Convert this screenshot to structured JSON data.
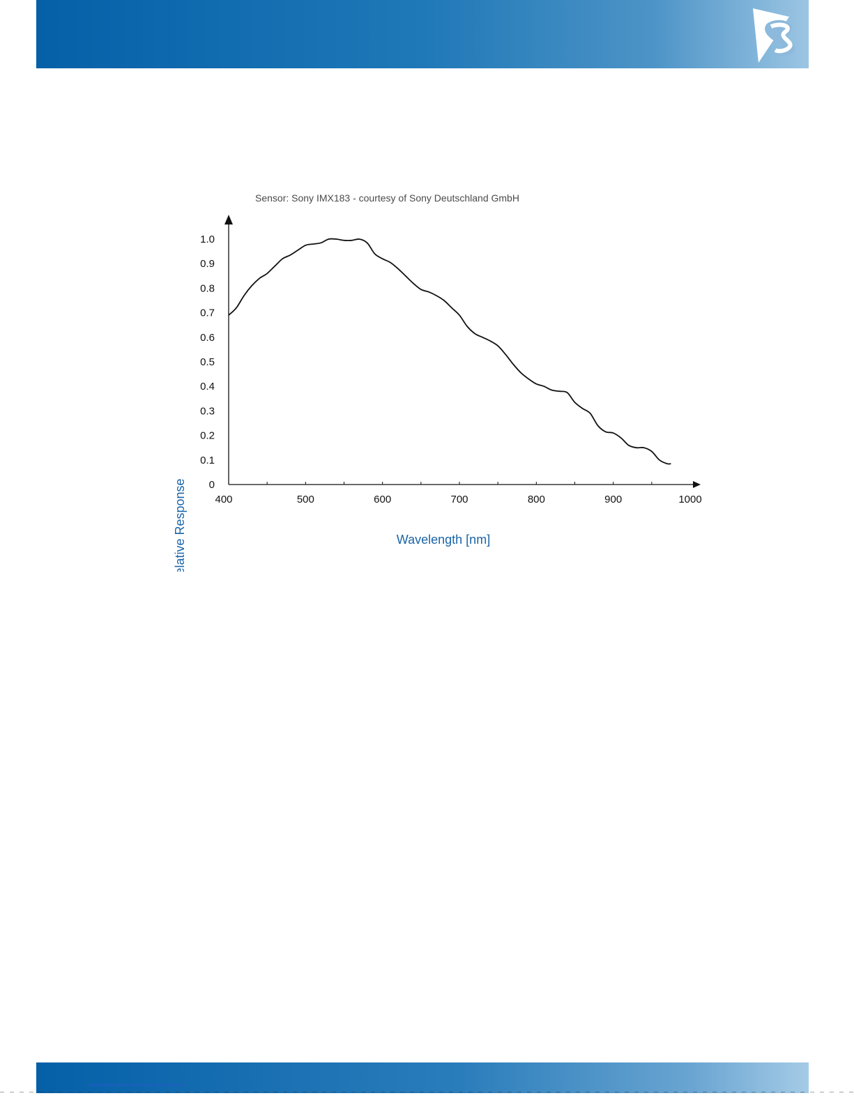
{
  "colors": {
    "brand_blue": "#0560a8",
    "axis_label_blue": "#1a64a6",
    "curve": "#111111",
    "title_gray": "#4a4a4a"
  },
  "logo": {
    "icon": "company-logo-icon"
  },
  "chart_data": {
    "type": "line",
    "title": "Sensor: Sony IMX183 - courtesy of Sony Deutschland GmbH",
    "xlabel": "Wavelength [nm]",
    "ylabel": "Relative Response",
    "xlim": [
      400,
      1000
    ],
    "ylim": [
      0,
      1.0
    ],
    "x_ticks": [
      "400",
      "500",
      "600",
      "700",
      "800",
      "900",
      "1000"
    ],
    "x_tick_values": [
      400,
      500,
      600,
      700,
      800,
      900,
      1000
    ],
    "y_ticks": [
      "0",
      "0.1",
      "0.2",
      "0.3",
      "0.4",
      "0.5",
      "0.6",
      "0.7",
      "0.8",
      "0.9",
      "1.0"
    ],
    "y_tick_values": [
      0,
      0.1,
      0.2,
      0.3,
      0.4,
      0.5,
      0.6,
      0.7,
      0.8,
      0.9,
      1.0
    ],
    "grid": false,
    "series": [
      {
        "x": [
          400,
          410,
          420,
          430,
          440,
          450,
          460,
          470,
          480,
          490,
          500,
          510,
          520,
          530,
          540,
          550,
          560,
          570,
          580,
          590,
          600,
          610,
          620,
          630,
          640,
          650,
          660,
          670,
          680,
          690,
          700,
          710,
          720,
          730,
          740,
          750,
          760,
          770,
          780,
          790,
          800,
          810,
          820,
          830,
          840,
          850,
          860,
          870,
          880,
          890,
          900,
          910,
          920,
          930,
          940,
          950,
          960,
          970,
          975
        ],
        "y": [
          0.69,
          0.72,
          0.77,
          0.81,
          0.84,
          0.86,
          0.89,
          0.92,
          0.935,
          0.955,
          0.975,
          0.98,
          0.985,
          1.0,
          1.0,
          0.995,
          0.995,
          1.0,
          0.985,
          0.94,
          0.92,
          0.905,
          0.88,
          0.85,
          0.82,
          0.795,
          0.785,
          0.77,
          0.75,
          0.72,
          0.69,
          0.645,
          0.615,
          0.6,
          0.585,
          0.565,
          0.53,
          0.49,
          0.455,
          0.43,
          0.41,
          0.4,
          0.385,
          0.38,
          0.375,
          0.335,
          0.31,
          0.29,
          0.24,
          0.215,
          0.21,
          0.19,
          0.16,
          0.15,
          0.15,
          0.135,
          0.1,
          0.085,
          0.085
        ]
      }
    ]
  }
}
